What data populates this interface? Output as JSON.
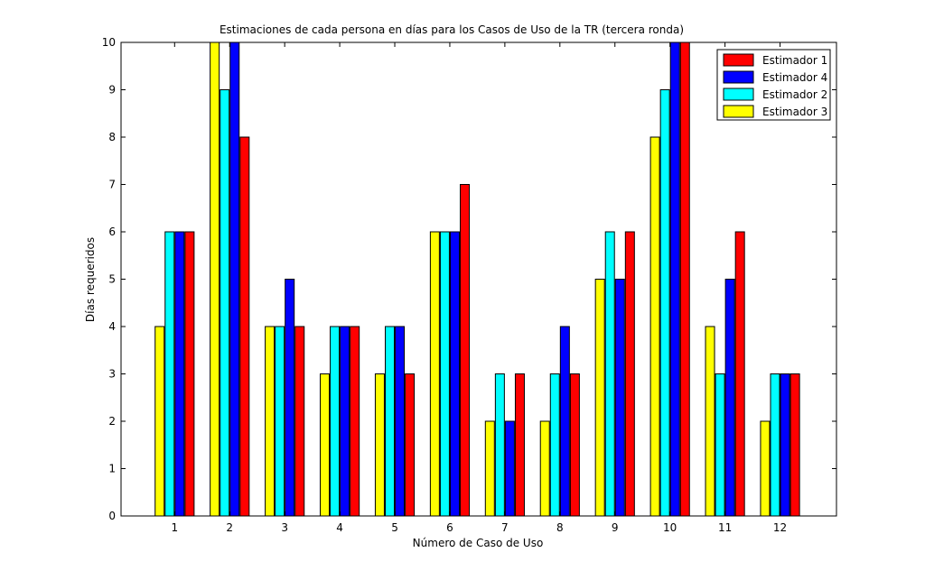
{
  "chart_data": {
    "type": "bar",
    "title": "Estimaciones de cada persona en días para los Casos de Uso de la TR (tercera ronda)",
    "xlabel": "Número de Caso de Uso",
    "ylabel": "Días requeridos",
    "categories": [
      "1",
      "2",
      "3",
      "4",
      "5",
      "6",
      "7",
      "8",
      "9",
      "10",
      "11",
      "12"
    ],
    "ylim": [
      0,
      10
    ],
    "yticks": [
      "0",
      "1",
      "2",
      "3",
      "4",
      "5",
      "6",
      "7",
      "8",
      "9",
      "10"
    ],
    "grid": false,
    "legend_position": "top-right",
    "series": [
      {
        "name": "Estimador 3",
        "color": "#ffff00",
        "values": [
          4,
          10,
          4,
          3,
          3,
          6,
          2,
          2,
          5,
          8,
          4,
          2
        ]
      },
      {
        "name": "Estimador 2",
        "color": "#00ffff",
        "values": [
          6,
          9,
          4,
          4,
          4,
          6,
          3,
          3,
          6,
          9,
          3,
          3
        ]
      },
      {
        "name": "Estimador 4",
        "color": "#0000ff",
        "values": [
          6,
          10,
          5,
          4,
          4,
          6,
          2,
          4,
          5,
          10,
          5,
          3
        ]
      },
      {
        "name": "Estimador 1",
        "color": "#ff0000",
        "values": [
          6,
          8,
          4,
          4,
          3,
          7,
          3,
          3,
          6,
          10,
          6,
          3
        ]
      }
    ],
    "legend_order": [
      "Estimador 1",
      "Estimador 4",
      "Estimador 2",
      "Estimador 3"
    ]
  }
}
